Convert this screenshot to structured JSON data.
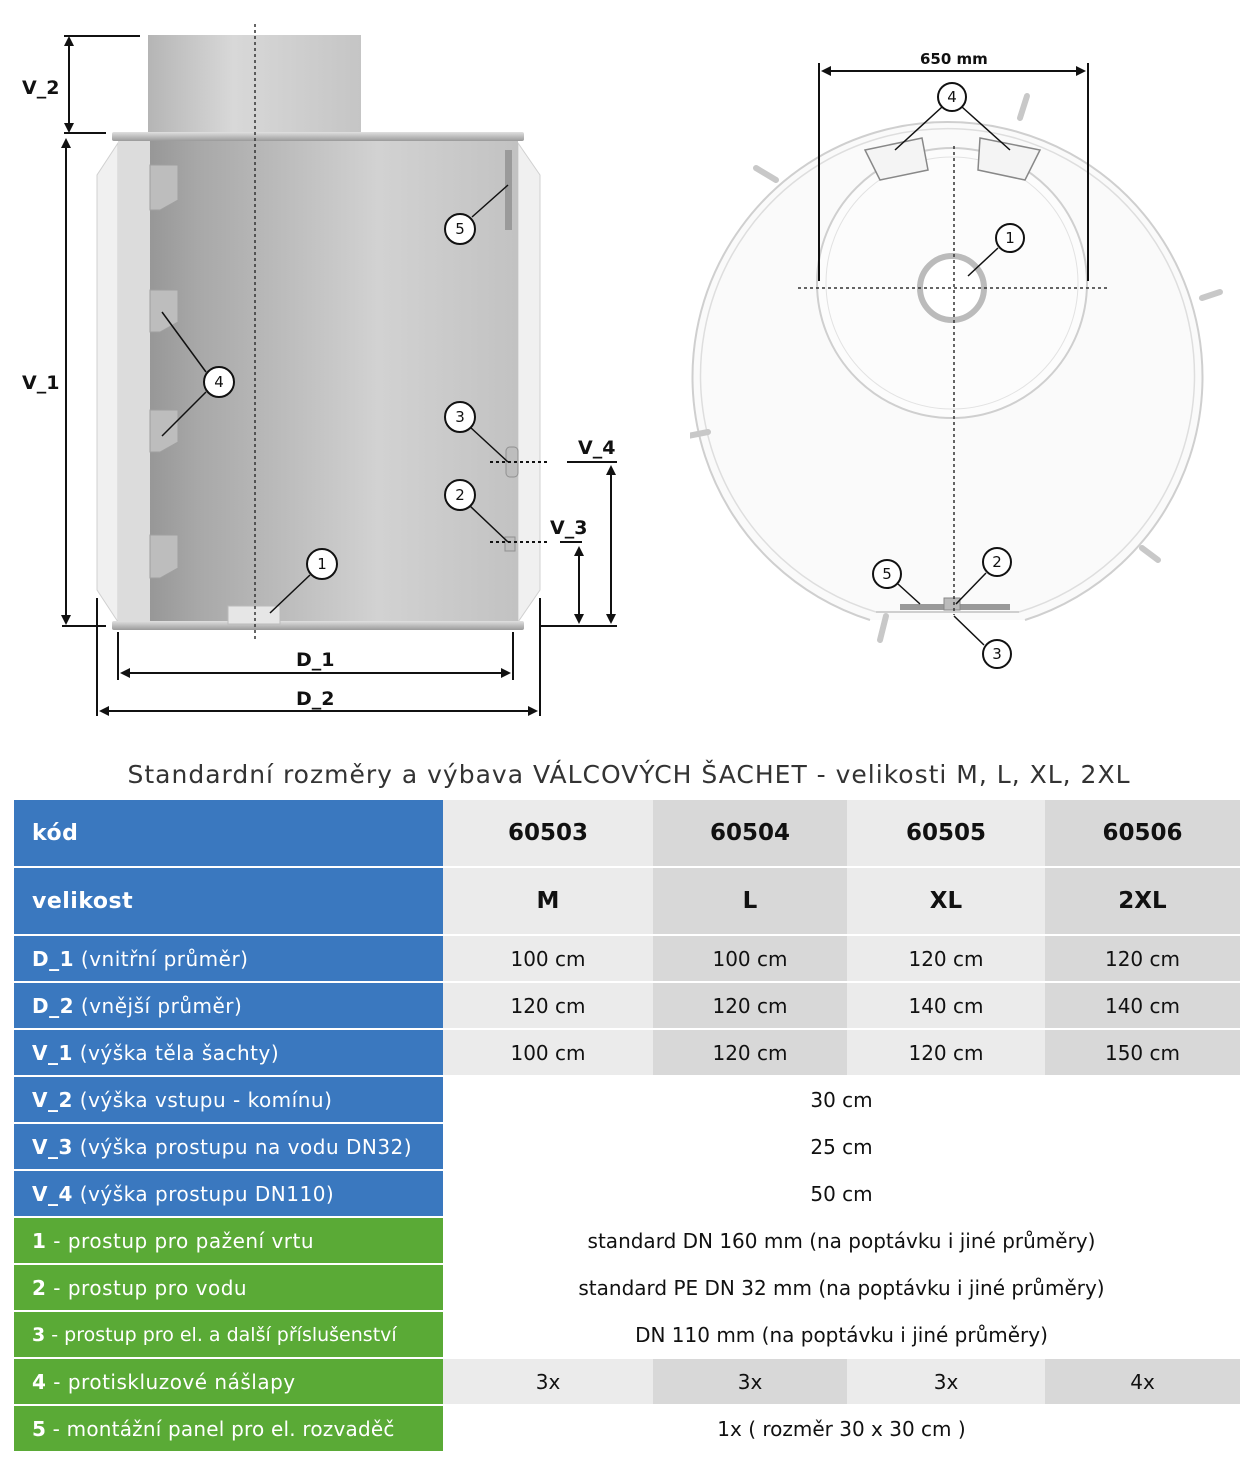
{
  "drawing_side": {
    "labels": {
      "v2": "V_2",
      "v1": "V_1",
      "v4": "V_4",
      "v3": "V_3",
      "d1": "D_1",
      "d2": "D_2"
    },
    "callouts": {
      "c1": "1",
      "c2": "2",
      "c3": "3",
      "c4": "4",
      "c5": "5"
    }
  },
  "drawing_top": {
    "dimension": "650 mm",
    "callouts": {
      "c1": "1",
      "c2": "2",
      "c3": "3",
      "c4": "4",
      "c5": "5"
    }
  },
  "caption": "Standardní rozměry a výbava VÁLCOVÝCH ŠACHET - velikosti M, L, XL, 2XL",
  "table": {
    "kod": {
      "label": "kód",
      "values": [
        "60503",
        "60504",
        "60505",
        "60506"
      ]
    },
    "velikost": {
      "label": "velikost",
      "values": [
        "M",
        "L",
        "XL",
        "2XL"
      ]
    },
    "d1": {
      "code": "D_1",
      "desc": " (vnitřní průměr)",
      "values": [
        "100 cm",
        "100 cm",
        "120 cm",
        "120 cm"
      ]
    },
    "d2": {
      "code": "D_2",
      "desc": " (vnější průměr)",
      "values": [
        "120 cm",
        "120 cm",
        "140 cm",
        "140 cm"
      ]
    },
    "v1": {
      "code": "V_1",
      "desc": " (výška těla šachty)",
      "values": [
        "100 cm",
        "120 cm",
        "120 cm",
        "150 cm"
      ]
    },
    "v2": {
      "code": "V_2",
      "desc": " (výška vstupu - komínu)",
      "value": "30 cm"
    },
    "v3": {
      "code": "V_3",
      "desc": " (výška prostupu na vodu DN32)",
      "value": "25 cm"
    },
    "v4": {
      "code": "V_4",
      "desc": " (výška prostupu DN110)",
      "value": "50 cm"
    },
    "p1": {
      "num": "1",
      "desc": " - prostup pro pažení vrtu",
      "value": "standard DN 160 mm (na poptávku i jiné průměry)"
    },
    "p2": {
      "num": "2",
      "desc": " - prostup pro vodu",
      "value": "standard PE DN 32 mm (na poptávku i jiné průměry)"
    },
    "p3": {
      "num": "3",
      "desc": " - prostup pro el. a další příslušenství",
      "value": "DN 110 mm (na poptávku i jiné průměry)"
    },
    "p4": {
      "num": "4",
      "desc": " - protiskluzové nášlapy",
      "values": [
        "3x",
        "3x",
        "3x",
        "4x"
      ]
    },
    "p5": {
      "num": "5",
      "desc": " - montážní panel pro el. rozvaděč",
      "value": "1x ( rozměr 30 x 30 cm )"
    }
  },
  "colors": {
    "blue": "#3a78bf",
    "green": "#5aaa36",
    "cell_light": "#ebebeb",
    "cell_dark": "#d8d8d8"
  }
}
